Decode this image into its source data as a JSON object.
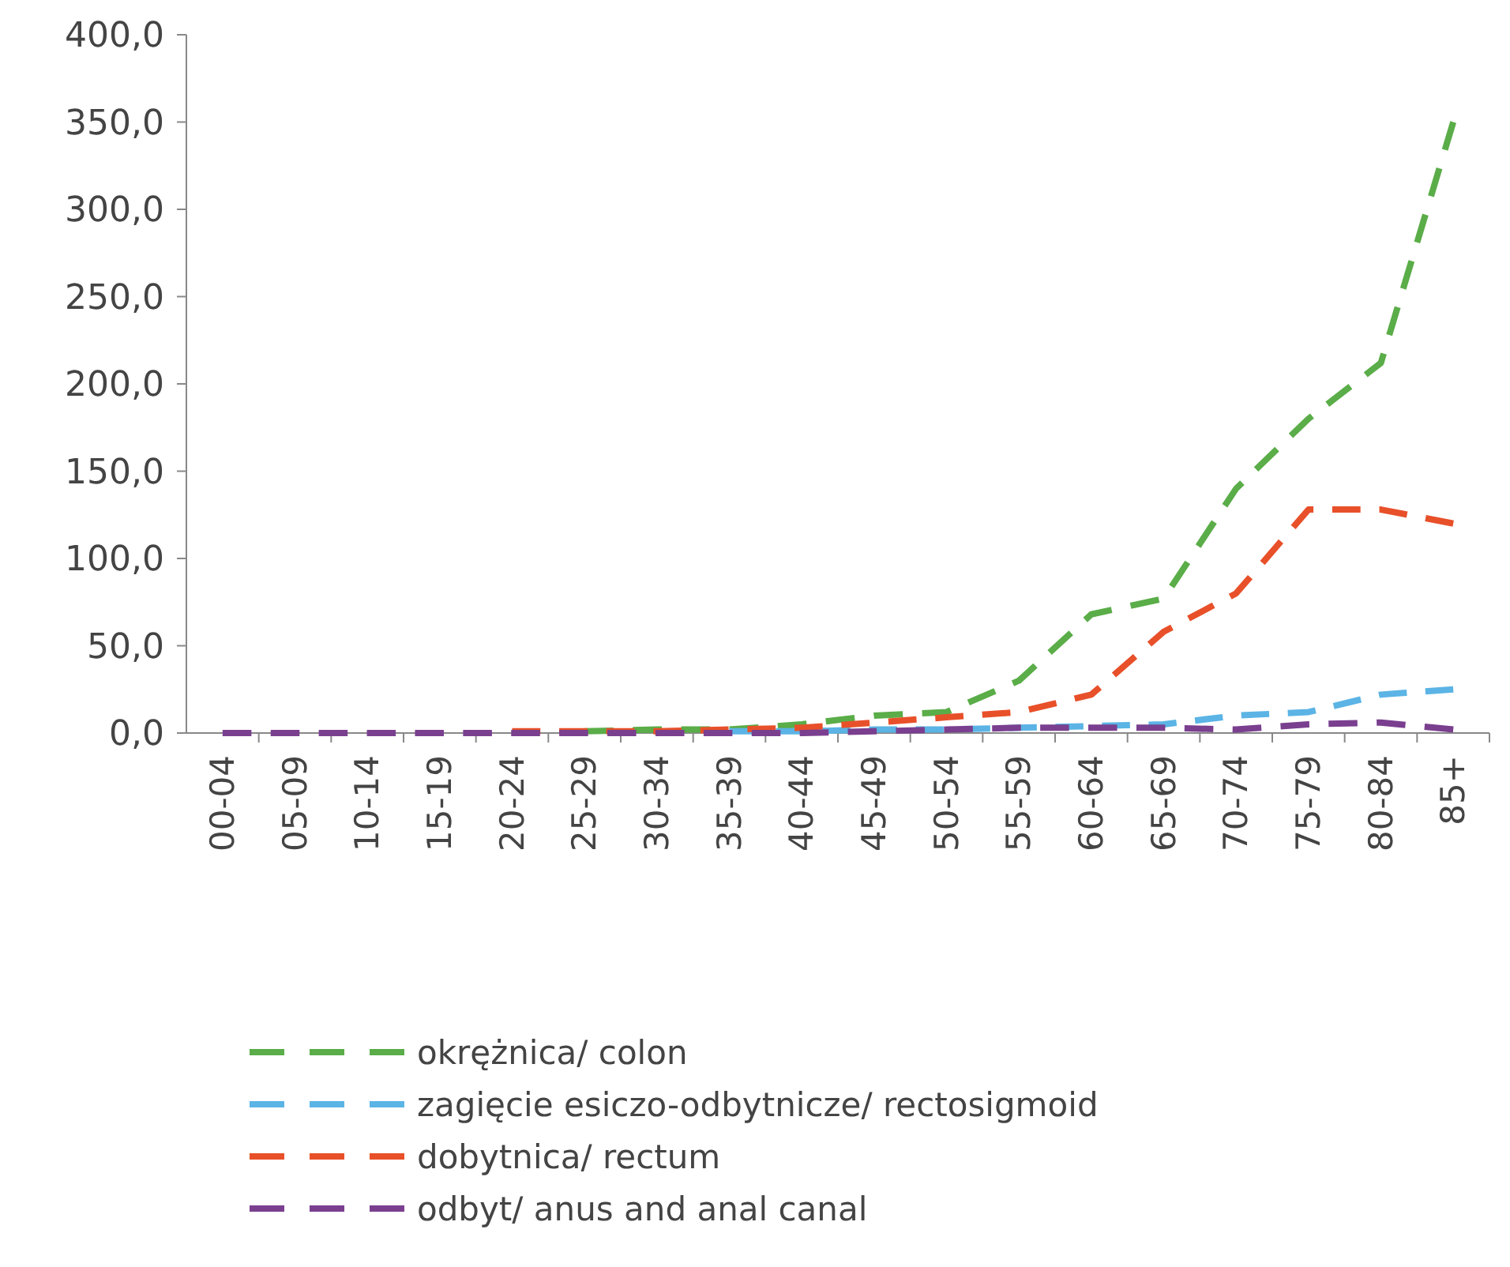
{
  "chart_data": {
    "type": "line",
    "categories": [
      "00-04",
      "05-09",
      "10-14",
      "15-19",
      "20-24",
      "25-29",
      "30-34",
      "35-39",
      "40-44",
      "45-49",
      "50-54",
      "55-59",
      "60-64",
      "65-69",
      "70-74",
      "75-79",
      "80-84",
      "85+"
    ],
    "series": [
      {
        "name": "okrężnica/ colon",
        "color": "#5aad48",
        "values": [
          null,
          null,
          null,
          null,
          null,
          1,
          2,
          2,
          5,
          10,
          12,
          30,
          68,
          77,
          140,
          180,
          212,
          350
        ]
      },
      {
        "name": "zagięcie esiczo-odbytnicze/ rectosigmoid",
        "color": "#5bb4e5",
        "values": [
          null,
          null,
          null,
          null,
          null,
          null,
          null,
          1,
          1,
          2,
          2,
          3,
          4,
          5,
          10,
          12,
          22,
          25
        ]
      },
      {
        "name": "dobytnica/ rectum",
        "color": "#e8502a",
        "values": [
          null,
          null,
          null,
          null,
          1,
          1,
          1,
          2,
          3,
          6,
          9,
          12,
          22,
          58,
          80,
          128,
          128,
          120
        ]
      },
      {
        "name": "odbyt/ anus and anal canal",
        "color": "#7a3f8f",
        "values": [
          0,
          0,
          0,
          0,
          0,
          0,
          0,
          0,
          0,
          1,
          2,
          3,
          3,
          3,
          2,
          5,
          6,
          2
        ]
      }
    ],
    "ylim": [
      0,
      400
    ],
    "yticks": [
      {
        "value": 0,
        "label": "0,0"
      },
      {
        "value": 50,
        "label": "50,0"
      },
      {
        "value": 100,
        "label": "100,0"
      },
      {
        "value": 150,
        "label": "150,0"
      },
      {
        "value": 200,
        "label": "200,0"
      },
      {
        "value": 250,
        "label": "250,0"
      },
      {
        "value": 300,
        "label": "300,0"
      },
      {
        "value": 350,
        "label": "350,0"
      },
      {
        "value": 400,
        "label": "400,0"
      }
    ],
    "line_style": "dashed",
    "marker": "none",
    "grid": false,
    "legend": "bottom"
  }
}
